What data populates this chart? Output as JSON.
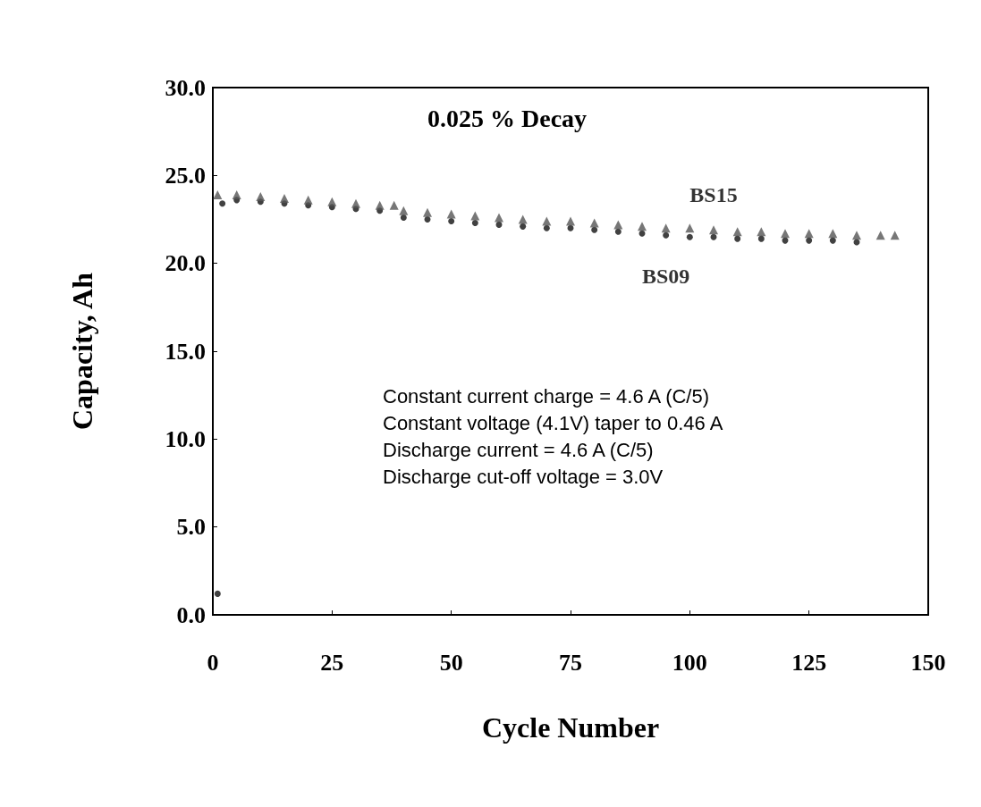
{
  "chart_data": {
    "type": "scatter",
    "xlabel": "Cycle Number",
    "ylabel": "Capacity, Ah",
    "xlim": [
      0,
      150
    ],
    "xticks": [
      0,
      25,
      50,
      75,
      100,
      125,
      150
    ],
    "ylim": [
      0,
      30
    ],
    "yticks": [
      {
        "value": 0,
        "label": "0.0"
      },
      {
        "value": 5,
        "label": "5.0"
      },
      {
        "value": 10,
        "label": "10.0"
      },
      {
        "value": 15,
        "label": "15.0"
      },
      {
        "value": 20,
        "label": "20.0"
      },
      {
        "value": 25,
        "label": "25.0"
      },
      {
        "value": 30,
        "label": "30.0"
      }
    ],
    "grid": false,
    "legend": false,
    "series": [
      {
        "name": "BS15",
        "color": "#555555",
        "marker": "triangle",
        "x": [
          1,
          5,
          10,
          15,
          20,
          25,
          30,
          35,
          38,
          40,
          45,
          50,
          55,
          60,
          65,
          70,
          75,
          80,
          85,
          90,
          95,
          100,
          105,
          110,
          115,
          120,
          125,
          130,
          135,
          140,
          143
        ],
        "values": [
          23.9,
          23.9,
          23.8,
          23.7,
          23.6,
          23.5,
          23.4,
          23.3,
          23.3,
          23.0,
          22.9,
          22.8,
          22.7,
          22.6,
          22.5,
          22.4,
          22.4,
          22.3,
          22.2,
          22.1,
          22.0,
          22.0,
          21.9,
          21.8,
          21.8,
          21.7,
          21.7,
          21.7,
          21.6,
          21.6,
          21.6
        ]
      },
      {
        "name": "BS09",
        "color": "#111111",
        "marker": "circle",
        "x": [
          1,
          2,
          5,
          10,
          15,
          20,
          25,
          30,
          35,
          40,
          45,
          50,
          55,
          60,
          65,
          70,
          75,
          80,
          85,
          90,
          95,
          100,
          105,
          110,
          115,
          120,
          125,
          130,
          135
        ],
        "values": [
          1.2,
          23.4,
          23.6,
          23.5,
          23.4,
          23.3,
          23.2,
          23.1,
          23.0,
          22.6,
          22.5,
          22.4,
          22.3,
          22.2,
          22.1,
          22.0,
          22.0,
          21.9,
          21.8,
          21.7,
          21.6,
          21.5,
          21.5,
          21.4,
          21.4,
          21.3,
          21.3,
          21.3,
          21.2
        ]
      }
    ],
    "annotations": [
      "0.025 % Decay",
      "Constant current charge = 4.6 A (C/5)\nConstant voltage (4.1V) taper to 0.46 A\nDischarge current = 4.6 A (C/5)\nDischarge cut-off voltage = 3.0V"
    ]
  }
}
